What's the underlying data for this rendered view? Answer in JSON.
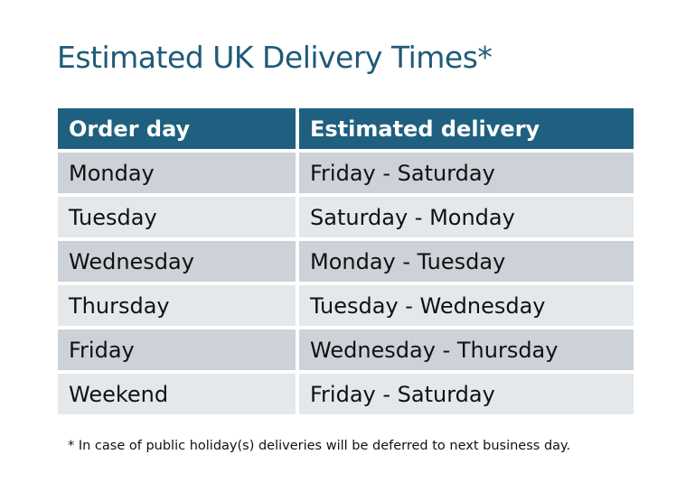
{
  "title": "Estimated UK Delivery Times*",
  "table": {
    "headers": [
      "Order day",
      "Estimated delivery"
    ],
    "rows": [
      [
        "Monday",
        "Friday - Saturday"
      ],
      [
        "Tuesday",
        "Saturday - Monday"
      ],
      [
        "Wednesday",
        "Monday - Tuesday"
      ],
      [
        "Thursday",
        "Tuesday - Wednesday"
      ],
      [
        "Friday",
        "Wednesday - Thursday"
      ],
      [
        "Weekend",
        "Friday - Saturday"
      ]
    ]
  },
  "footnote": "* In case of public holiday(s) deliveries will be deferred to next business day.",
  "colors": {
    "header": "#1f6080",
    "title": "#1f5a78",
    "row_odd": "#cdd1d8",
    "row_even": "#e5e8eb"
  }
}
